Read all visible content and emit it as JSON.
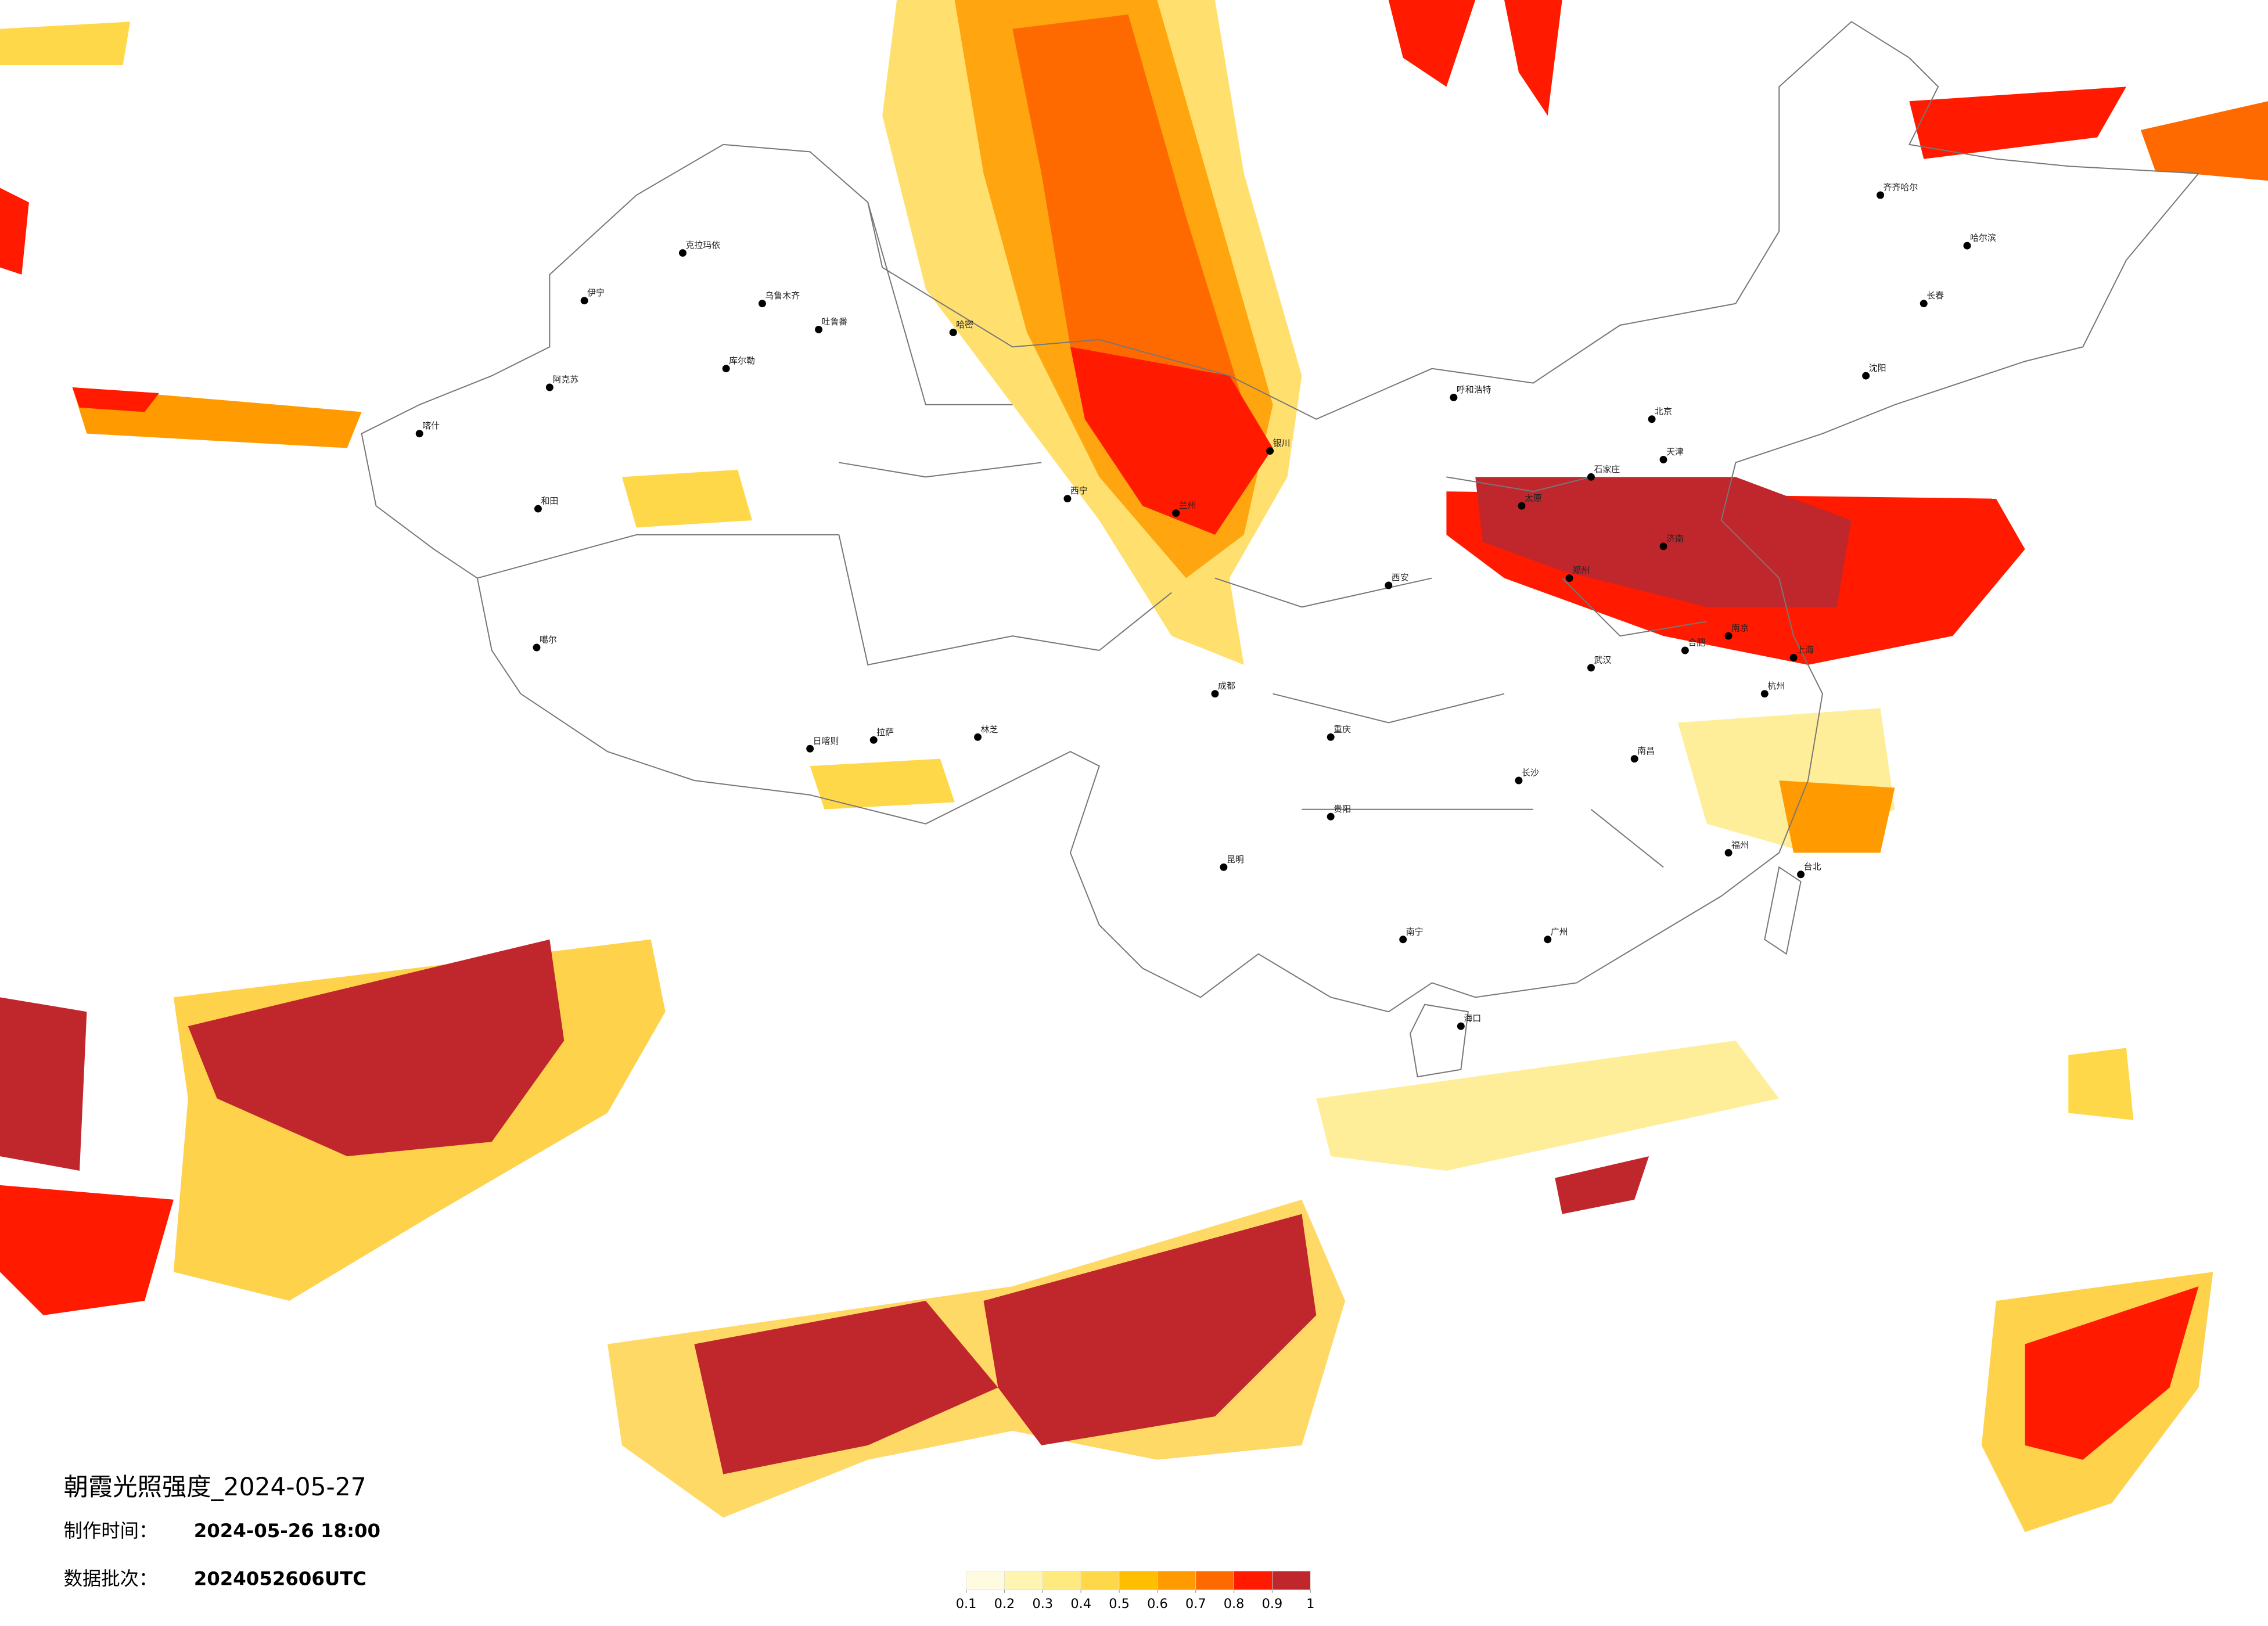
{
  "header": {
    "title": "朝霞光照强度_2024-05-27",
    "made_label": "制作时间：",
    "made_time": "2024-05-26 18:00",
    "batch_label": "数据批次：",
    "batch": "2024052606UTC"
  },
  "legend": {
    "colors": [
      "#fffbe0",
      "#fff4b0",
      "#ffea80",
      "#ffd84a",
      "#ffbf00",
      "#ff9a00",
      "#ff6a00",
      "#ff1a00",
      "#c0272d"
    ],
    "ticks": [
      0.1,
      0.2,
      0.3,
      0.4,
      0.5,
      0.6,
      0.7,
      0.8,
      0.9,
      1
    ]
  },
  "cities": [
    "克拉玛依",
    "乌鲁木齐",
    "吐鲁番",
    "伊宁",
    "阿克苏",
    "喀什",
    "和田",
    "哈密",
    "库尔勒",
    "噶尔",
    "拉萨",
    "日喀则",
    "林芝",
    "西宁",
    "兰州",
    "银川",
    "呼和浩特",
    "北京",
    "天津",
    "石家庄",
    "太原",
    "济南",
    "郑州",
    "西安",
    "成都",
    "重庆",
    "贵阳",
    "昆明",
    "南宁",
    "广州",
    "长沙",
    "武汉",
    "南昌",
    "合肥",
    "南京",
    "上海",
    "杭州",
    "福州",
    "台北",
    "海口",
    "哈尔滨",
    "长春",
    "沈阳",
    "齐齐哈尔"
  ]
}
